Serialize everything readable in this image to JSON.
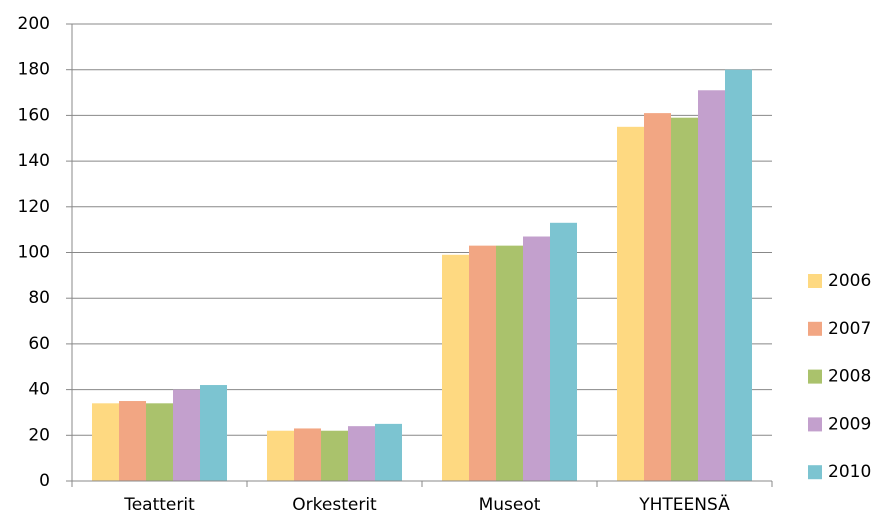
{
  "chart_data": {
    "type": "bar",
    "categories": [
      "Teatterit",
      "Orkesterit",
      "Museot",
      "YHTEENSÄ"
    ],
    "series": [
      {
        "name": "2006",
        "color": "#fed981",
        "values": [
          34,
          22,
          99,
          155
        ]
      },
      {
        "name": "2007",
        "color": "#f2a683",
        "values": [
          35,
          23,
          103,
          161
        ]
      },
      {
        "name": "2008",
        "color": "#aac26c",
        "values": [
          34,
          22,
          103,
          159
        ]
      },
      {
        "name": "2009",
        "color": "#c3a0cd",
        "values": [
          40,
          24,
          107,
          171
        ]
      },
      {
        "name": "2010",
        "color": "#7cc4d1",
        "values": [
          42,
          25,
          113,
          180
        ]
      }
    ],
    "ylim": [
      0,
      200
    ],
    "yticks": [
      0,
      20,
      40,
      60,
      80,
      100,
      120,
      140,
      160,
      180,
      200
    ],
    "grid": true,
    "legend": "right"
  }
}
